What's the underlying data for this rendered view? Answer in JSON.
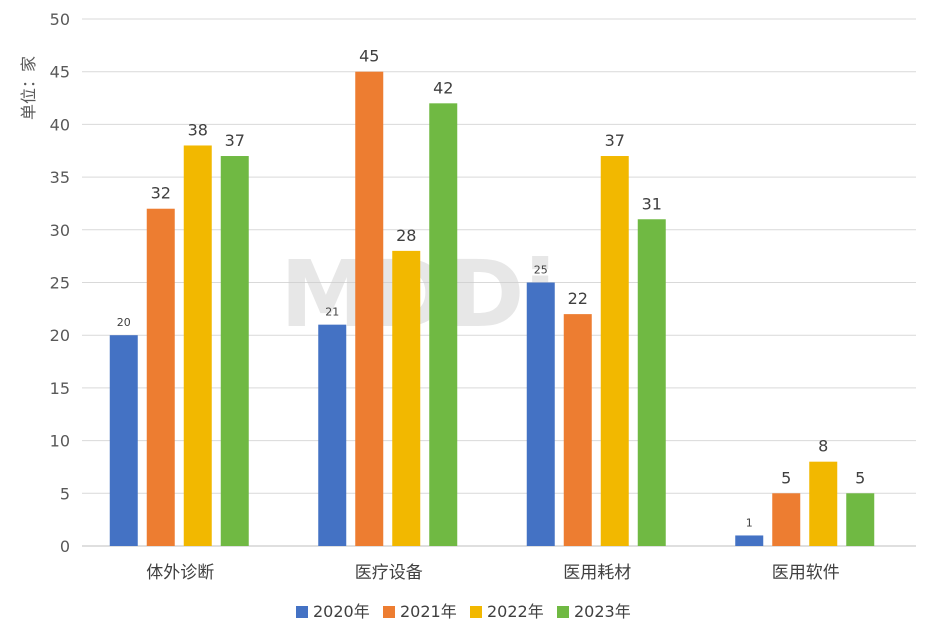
{
  "chart_data": {
    "type": "bar",
    "ylabel": "单位：家",
    "ylim": [
      0,
      50
    ],
    "ytick_step": 5,
    "grid": true,
    "legend_position": "bottom",
    "categories": [
      "体外诊断",
      "医疗设备",
      "医用耗材",
      "医用软件"
    ],
    "series": [
      {
        "name": "2020年",
        "color": "#4472C4",
        "values": [
          20,
          21,
          25,
          1
        ]
      },
      {
        "name": "2021年",
        "color": "#ED7D31",
        "values": [
          32,
          45,
          22,
          5
        ]
      },
      {
        "name": "2022年",
        "color": "#F2B800",
        "values": [
          38,
          28,
          37,
          8
        ]
      },
      {
        "name": "2023年",
        "color": "#70B943",
        "values": [
          37,
          42,
          31,
          5
        ]
      }
    ],
    "watermark": "MDDi"
  }
}
